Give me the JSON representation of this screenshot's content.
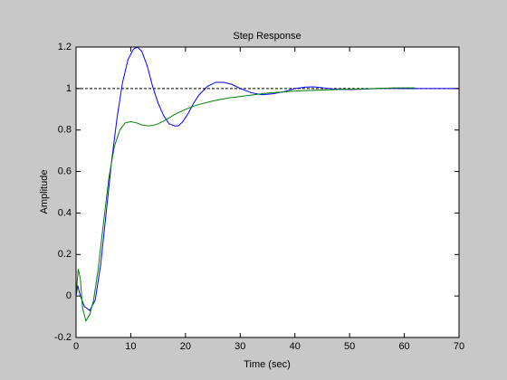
{
  "chart_data": {
    "type": "line",
    "title": "Step Response",
    "x_label": "Time (sec)",
    "y_label": "Amplitude",
    "xlim": [
      0,
      70
    ],
    "ylim": [
      -0.2,
      1.2
    ],
    "xticks": [
      0,
      10,
      20,
      30,
      40,
      50,
      60,
      70
    ],
    "yticks": [
      -0.2,
      0,
      0.2,
      0.4,
      0.6,
      0.8,
      1,
      1.2
    ],
    "reference_line": 1,
    "series": [
      {
        "color": "#0000ff",
        "x": [
          0,
          0.3,
          0.8,
          1.5,
          2.5,
          3.5,
          4.5,
          5.5,
          6.5,
          7.5,
          8.5,
          9.5,
          10.5,
          11.2,
          12,
          13,
          14,
          15,
          16,
          17,
          18,
          18.7,
          19.5,
          20.5,
          21.5,
          22.5,
          24,
          25.5,
          27,
          28.5,
          30,
          32,
          34,
          36,
          38,
          40,
          42,
          43.5,
          45,
          47,
          50,
          53,
          56,
          60,
          65,
          70
        ],
        "values": [
          0,
          0.05,
          0.0,
          -0.05,
          -0.07,
          -0.02,
          0.15,
          0.4,
          0.65,
          0.86,
          1.03,
          1.14,
          1.19,
          1.2,
          1.18,
          1.11,
          1.01,
          0.93,
          0.87,
          0.83,
          0.82,
          0.82,
          0.84,
          0.88,
          0.93,
          0.97,
          1.01,
          1.03,
          1.03,
          1.02,
          1.0,
          0.98,
          0.97,
          0.975,
          0.985,
          1.0,
          1.007,
          1.008,
          1.004,
          0.998,
          0.995,
          0.998,
          1.001,
          1.0,
          1.0,
          1.0
        ]
      },
      {
        "color": "#008000",
        "x": [
          0,
          0.4,
          0.8,
          1.2,
          1.8,
          2.5,
          3.2,
          4,
          5,
          6,
          7,
          8,
          9,
          10,
          11,
          12,
          13,
          14,
          15,
          16.5,
          18,
          20,
          22,
          25,
          28,
          31,
          35,
          40,
          45,
          50,
          55,
          58,
          62
        ],
        "values": [
          0,
          0.13,
          0.08,
          -0.06,
          -0.12,
          -0.09,
          -0.02,
          0.12,
          0.35,
          0.57,
          0.72,
          0.8,
          0.835,
          0.84,
          0.835,
          0.825,
          0.82,
          0.822,
          0.83,
          0.85,
          0.875,
          0.9,
          0.92,
          0.94,
          0.955,
          0.965,
          0.978,
          0.988,
          0.993,
          0.997,
          1.0,
          1.003,
          1.003
        ]
      }
    ]
  }
}
